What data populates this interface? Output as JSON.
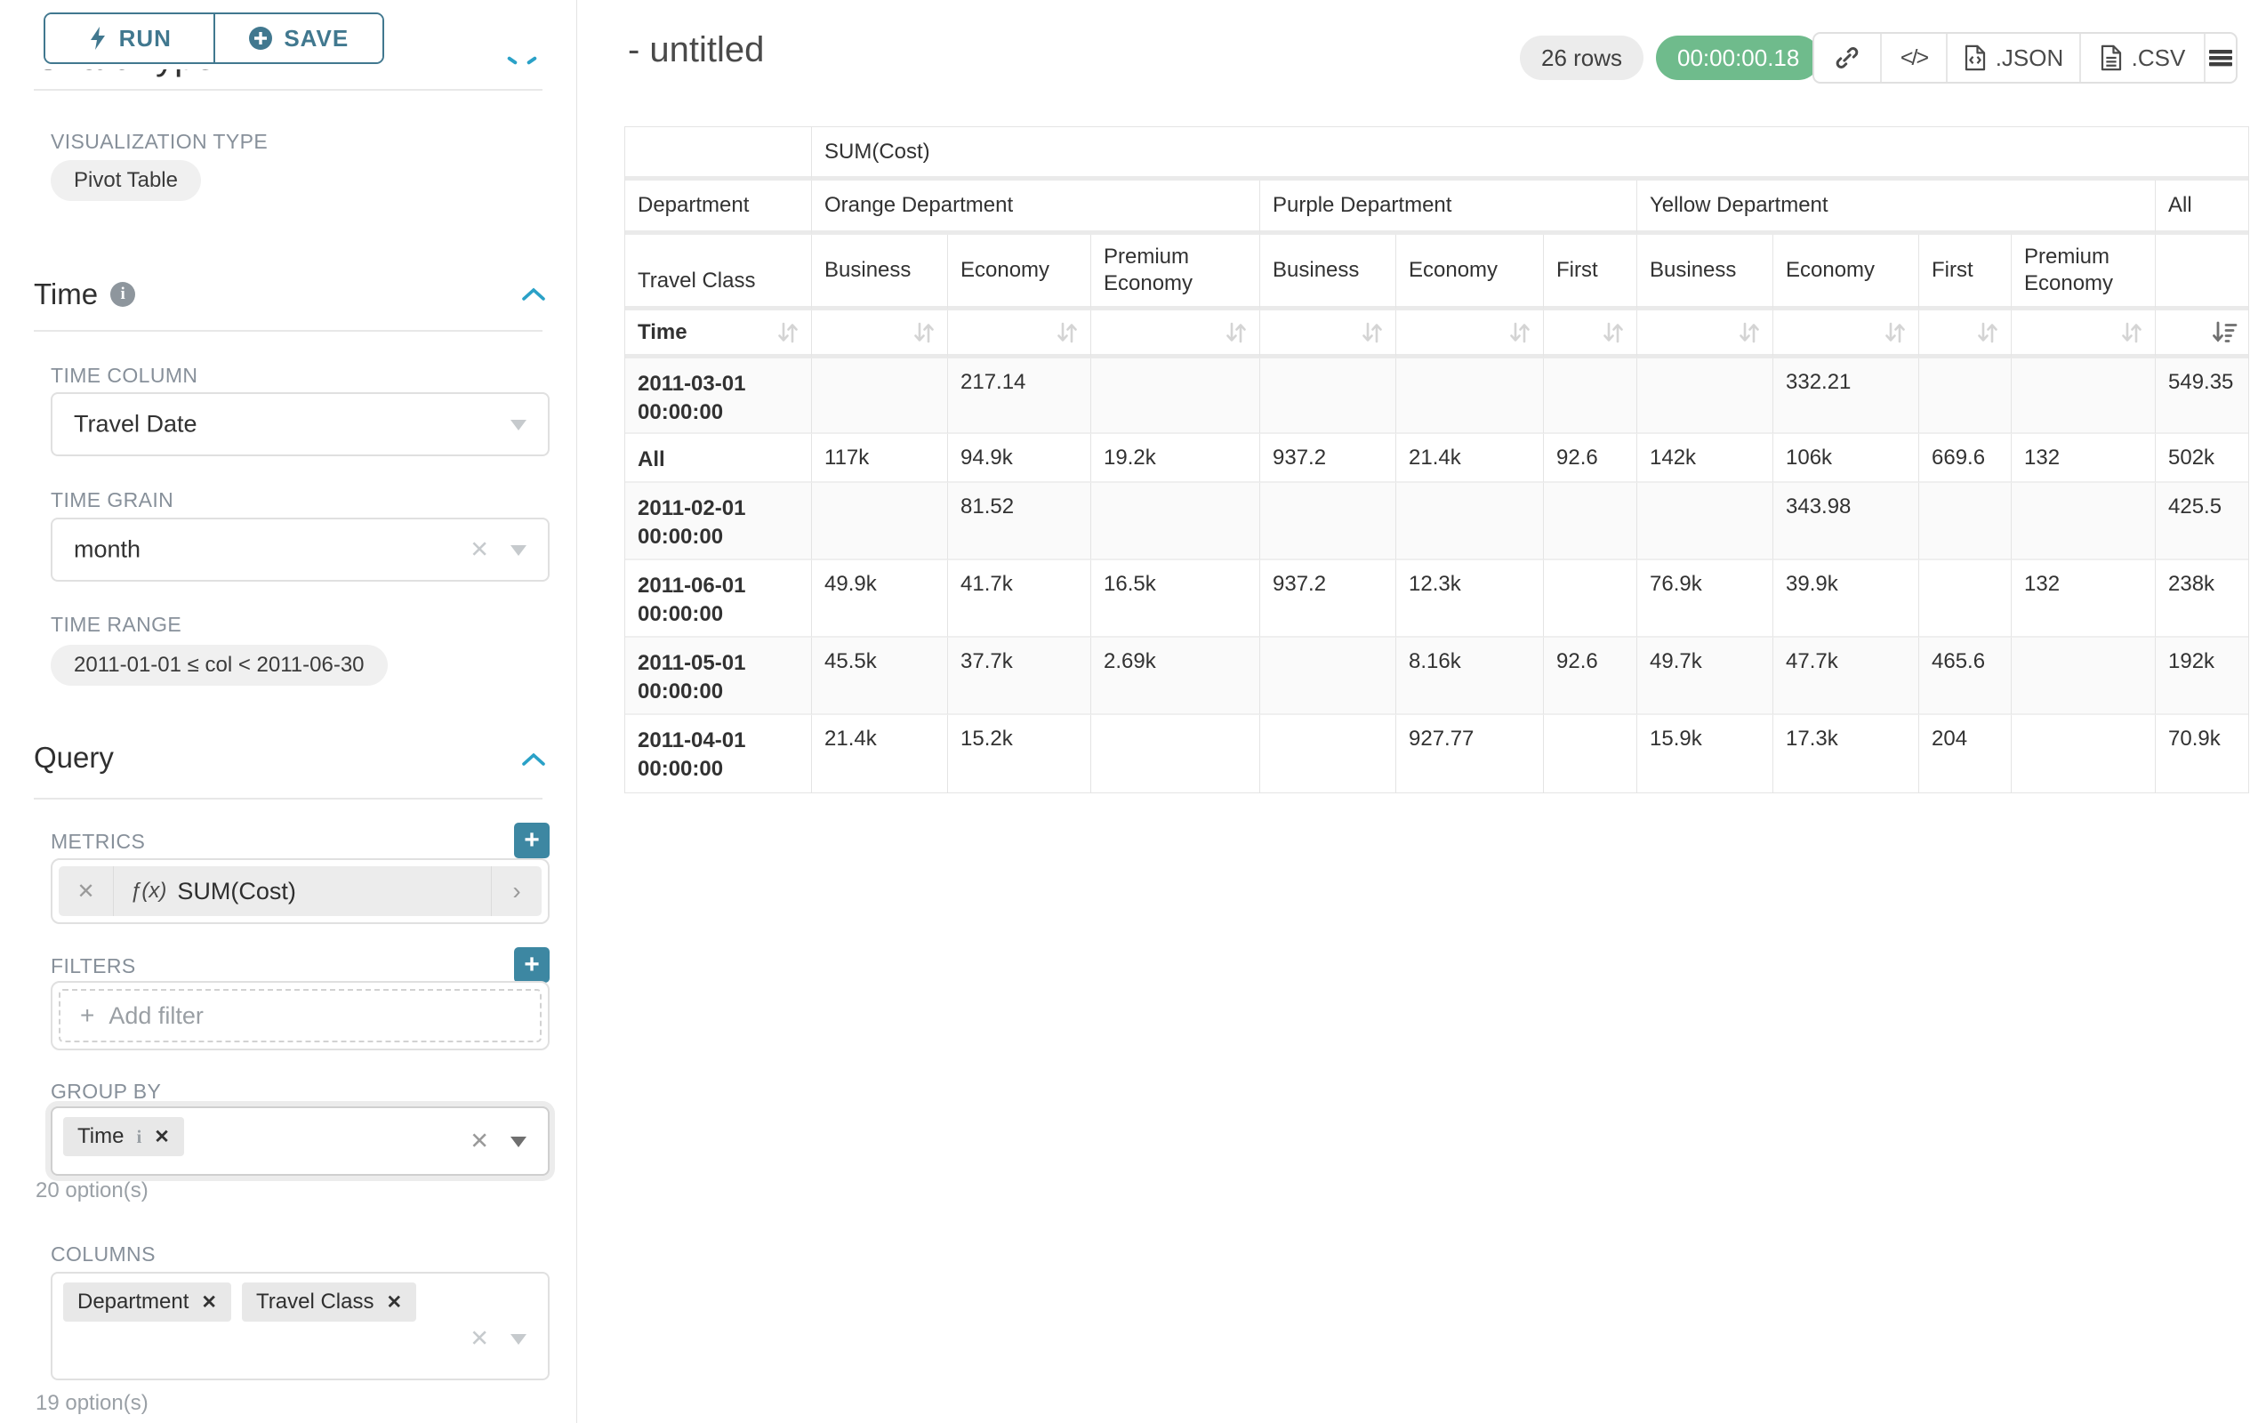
{
  "sidebar": {
    "run_label": "RUN",
    "save_label": "SAVE",
    "chart_type_heading": "Chart Type",
    "viz_type_label": "VISUALIZATION TYPE",
    "viz_type_value": "Pivot Table",
    "time": {
      "title": "Time",
      "time_column_label": "TIME COLUMN",
      "time_column_value": "Travel Date",
      "time_grain_label": "TIME GRAIN",
      "time_grain_value": "month",
      "time_range_label": "TIME RANGE",
      "time_range_value": "2011-01-01 ≤ col < 2011-06-30"
    },
    "query": {
      "title": "Query",
      "metrics_label": "METRICS",
      "metric_fx": "ƒ(x)",
      "metric_value": "SUM(Cost)",
      "filters_label": "FILTERS",
      "add_filter_label": "Add filter",
      "group_by_label": "GROUP BY",
      "group_by_chips": [
        "Time"
      ],
      "group_by_options_note": "20 option(s)",
      "columns_label": "COLUMNS",
      "columns_chips": [
        "Department",
        "Travel Class"
      ],
      "columns_options_note": "19 option(s)"
    }
  },
  "header": {
    "title": "- untitled",
    "rows_badge": "26 rows",
    "timer_badge": "00:00:00.18",
    "json_label": ".JSON",
    "csv_label": ".CSV"
  },
  "colors": {
    "button_teal": "#41788f",
    "add_button_teal": "#3d87a2",
    "chevron_blue": "#2aa1c7",
    "timer_green": "#6fbb8c",
    "label_gray": "#87909a"
  },
  "pivot_table": {
    "metric_header": "SUM(Cost)",
    "dim_row2_label": "Department",
    "dim_row3_label": "Travel Class",
    "dim_row4_label": "Time",
    "column_groups": [
      {
        "label": "Orange Department",
        "span": 3
      },
      {
        "label": "Purple Department",
        "span": 3
      },
      {
        "label": "Yellow Department",
        "span": 4
      },
      {
        "label": "All",
        "span": 1
      }
    ],
    "column_leaves": [
      "Business",
      "Economy",
      "Premium Economy",
      "Business",
      "Economy",
      "First",
      "Business",
      "Economy",
      "First",
      "Premium Economy",
      ""
    ],
    "rows": [
      {
        "label": "2011-03-01 00:00:00",
        "values": [
          "",
          "217.14",
          "",
          "",
          "",
          "",
          "",
          "332.21",
          "",
          "",
          "549.35"
        ]
      },
      {
        "label": "All",
        "values": [
          "117k",
          "94.9k",
          "19.2k",
          "937.2",
          "21.4k",
          "92.6",
          "142k",
          "106k",
          "669.6",
          "132",
          "502k"
        ]
      },
      {
        "label": "2011-02-01 00:00:00",
        "values": [
          "",
          "81.52",
          "",
          "",
          "",
          "",
          "",
          "343.98",
          "",
          "",
          "425.5"
        ]
      },
      {
        "label": "2011-06-01 00:00:00",
        "values": [
          "49.9k",
          "41.7k",
          "16.5k",
          "937.2",
          "12.3k",
          "",
          "76.9k",
          "39.9k",
          "",
          "132",
          "238k"
        ]
      },
      {
        "label": "2011-05-01 00:00:00",
        "values": [
          "45.5k",
          "37.7k",
          "2.69k",
          "",
          "8.16k",
          "92.6",
          "49.7k",
          "47.7k",
          "465.6",
          "",
          "192k"
        ]
      },
      {
        "label": "2011-04-01 00:00:00",
        "values": [
          "21.4k",
          "15.2k",
          "",
          "",
          "927.77",
          "",
          "15.9k",
          "17.3k",
          "204",
          "",
          "70.9k"
        ]
      }
    ]
  }
}
